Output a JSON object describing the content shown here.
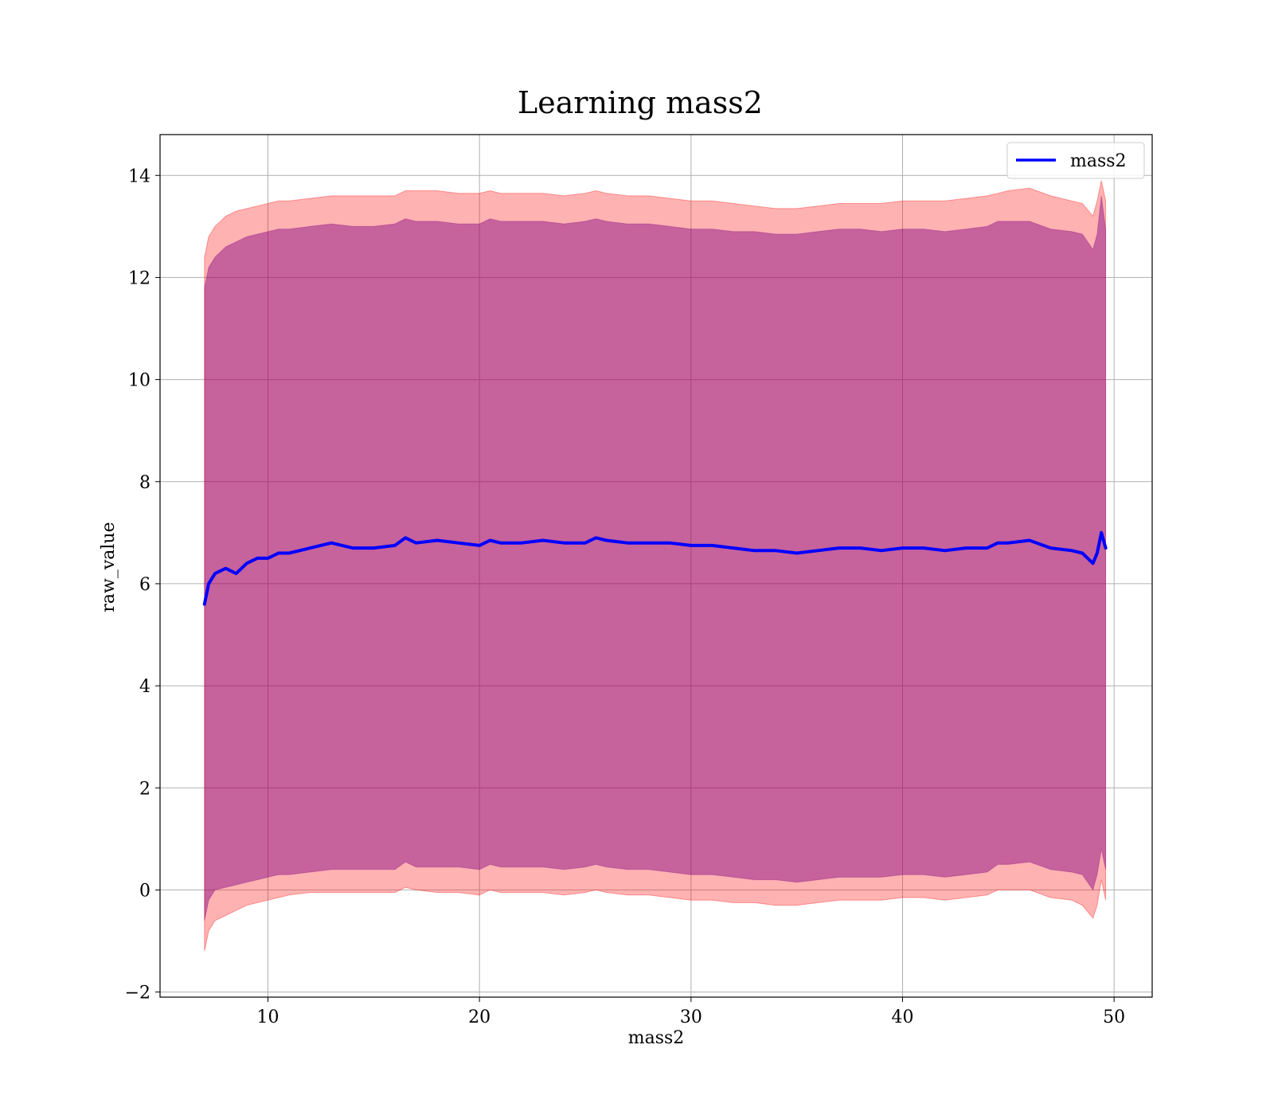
{
  "chart_data": {
    "type": "line",
    "title": "Learning mass2",
    "xlabel": "mass2",
    "ylabel": "raw_value",
    "xlim": [
      4.9,
      51.8
    ],
    "ylim": [
      -2.1,
      14.8
    ],
    "x_ticks": [
      10,
      20,
      30,
      40,
      50
    ],
    "x_tick_labels": [
      "10",
      "20",
      "30",
      "40",
      "50"
    ],
    "y_ticks": [
      -2,
      0,
      2,
      4,
      6,
      8,
      10,
      12,
      14
    ],
    "y_tick_labels": [
      "−2",
      "0",
      "2",
      "4",
      "6",
      "8",
      "10",
      "12",
      "14"
    ],
    "grid": true,
    "legend": {
      "position": "top-right",
      "entries": [
        "mass2"
      ]
    },
    "colors": {
      "line": "#0000ff",
      "outer_band": "#ff0000",
      "inner_band": "#800080"
    },
    "series": [
      {
        "name": "mass2",
        "x": [
          7.0,
          7.2,
          7.5,
          8.0,
          8.5,
          9.0,
          9.5,
          10.0,
          10.5,
          11.0,
          12.0,
          13.0,
          14.0,
          15.0,
          16.0,
          16.5,
          17.0,
          18.0,
          19.0,
          20.0,
          20.5,
          21.0,
          22.0,
          23.0,
          24.0,
          25.0,
          25.5,
          26.0,
          27.0,
          28.0,
          29.0,
          30.0,
          31.0,
          32.0,
          33.0,
          34.0,
          35.0,
          36.0,
          37.0,
          38.0,
          39.0,
          40.0,
          41.0,
          42.0,
          43.0,
          44.0,
          44.5,
          45.0,
          46.0,
          47.0,
          48.0,
          48.5,
          49.0,
          49.2,
          49.4,
          49.6
        ],
        "mean": [
          5.6,
          6.0,
          6.2,
          6.3,
          6.2,
          6.4,
          6.5,
          6.5,
          6.6,
          6.6,
          6.7,
          6.8,
          6.7,
          6.7,
          6.75,
          6.9,
          6.8,
          6.85,
          6.8,
          6.75,
          6.85,
          6.8,
          6.8,
          6.85,
          6.8,
          6.8,
          6.9,
          6.85,
          6.8,
          6.8,
          6.8,
          6.75,
          6.75,
          6.7,
          6.65,
          6.65,
          6.6,
          6.65,
          6.7,
          6.7,
          6.65,
          6.7,
          6.7,
          6.65,
          6.7,
          6.7,
          6.8,
          6.8,
          6.85,
          6.7,
          6.65,
          6.6,
          6.4,
          6.6,
          7.0,
          6.7
        ],
        "band_outer_upper": [
          12.4,
          12.8,
          13.0,
          13.2,
          13.3,
          13.35,
          13.4,
          13.45,
          13.5,
          13.5,
          13.55,
          13.6,
          13.6,
          13.6,
          13.6,
          13.7,
          13.7,
          13.7,
          13.65,
          13.65,
          13.7,
          13.65,
          13.65,
          13.65,
          13.6,
          13.65,
          13.7,
          13.65,
          13.6,
          13.6,
          13.55,
          13.5,
          13.5,
          13.45,
          13.4,
          13.35,
          13.35,
          13.4,
          13.45,
          13.45,
          13.45,
          13.5,
          13.5,
          13.5,
          13.55,
          13.6,
          13.65,
          13.7,
          13.75,
          13.6,
          13.5,
          13.45,
          13.2,
          13.5,
          13.9,
          13.5
        ],
        "band_outer_lower": [
          -1.2,
          -0.8,
          -0.6,
          -0.5,
          -0.4,
          -0.3,
          -0.25,
          -0.2,
          -0.15,
          -0.1,
          -0.05,
          -0.05,
          -0.05,
          -0.05,
          -0.05,
          0.05,
          0.0,
          -0.05,
          -0.05,
          -0.1,
          0.0,
          -0.05,
          -0.05,
          -0.05,
          -0.1,
          -0.05,
          0.0,
          -0.05,
          -0.1,
          -0.1,
          -0.15,
          -0.2,
          -0.2,
          -0.25,
          -0.25,
          -0.3,
          -0.3,
          -0.25,
          -0.2,
          -0.2,
          -0.2,
          -0.15,
          -0.15,
          -0.2,
          -0.15,
          -0.1,
          0.0,
          0.0,
          0.0,
          -0.15,
          -0.2,
          -0.3,
          -0.55,
          -0.3,
          0.2,
          -0.2
        ],
        "band_inner_upper": [
          11.8,
          12.2,
          12.4,
          12.6,
          12.7,
          12.8,
          12.85,
          12.9,
          12.95,
          12.95,
          13.0,
          13.05,
          13.0,
          13.0,
          13.05,
          13.15,
          13.1,
          13.1,
          13.05,
          13.05,
          13.15,
          13.1,
          13.1,
          13.1,
          13.05,
          13.1,
          13.15,
          13.1,
          13.05,
          13.05,
          13.0,
          12.95,
          12.95,
          12.9,
          12.9,
          12.85,
          12.85,
          12.9,
          12.95,
          12.95,
          12.9,
          12.95,
          12.95,
          12.9,
          12.95,
          13.0,
          13.1,
          13.1,
          13.1,
          12.95,
          12.9,
          12.85,
          12.55,
          12.85,
          13.6,
          12.95
        ],
        "band_inner_lower": [
          -0.6,
          -0.2,
          0.0,
          0.05,
          0.1,
          0.15,
          0.2,
          0.25,
          0.3,
          0.3,
          0.35,
          0.4,
          0.4,
          0.4,
          0.4,
          0.55,
          0.45,
          0.45,
          0.45,
          0.4,
          0.5,
          0.45,
          0.45,
          0.45,
          0.4,
          0.45,
          0.5,
          0.45,
          0.4,
          0.4,
          0.35,
          0.3,
          0.3,
          0.25,
          0.2,
          0.2,
          0.15,
          0.2,
          0.25,
          0.25,
          0.25,
          0.3,
          0.3,
          0.25,
          0.3,
          0.35,
          0.5,
          0.5,
          0.55,
          0.4,
          0.35,
          0.3,
          0.0,
          0.3,
          0.8,
          0.4
        ]
      }
    ]
  }
}
